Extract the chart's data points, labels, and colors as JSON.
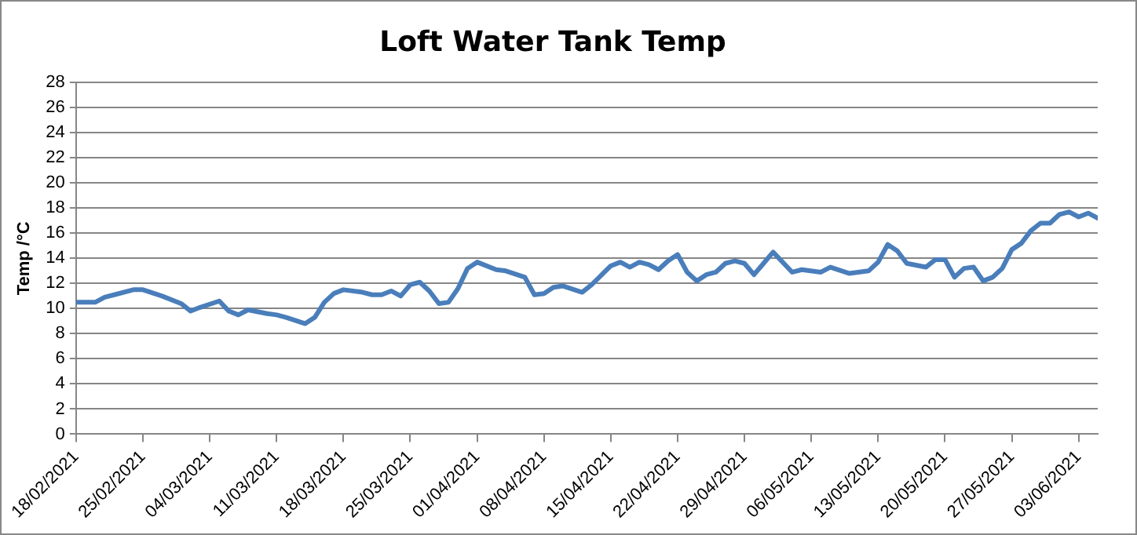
{
  "chart_data": {
    "type": "line",
    "title": "Loft Water Tank Temp",
    "ylabel": "Temp /°C",
    "x": [
      "2021-02-18",
      "2021-02-20",
      "2021-02-21",
      "2021-02-22",
      "2021-02-24",
      "2021-02-25",
      "2021-02-27",
      "2021-03-01",
      "2021-03-02",
      "2021-03-03",
      "2021-03-05",
      "2021-03-06",
      "2021-03-07",
      "2021-03-08",
      "2021-03-10",
      "2021-03-11",
      "2021-03-12",
      "2021-03-14",
      "2021-03-15",
      "2021-03-16",
      "2021-03-17",
      "2021-03-18",
      "2021-03-20",
      "2021-03-21",
      "2021-03-22",
      "2021-03-23",
      "2021-03-24",
      "2021-03-25",
      "2021-03-26",
      "2021-03-27",
      "2021-03-28",
      "2021-03-29",
      "2021-03-30",
      "2021-03-31",
      "2021-04-01",
      "2021-04-03",
      "2021-04-04",
      "2021-04-06",
      "2021-04-07",
      "2021-04-08",
      "2021-04-09",
      "2021-04-10",
      "2021-04-12",
      "2021-04-13",
      "2021-04-15",
      "2021-04-16",
      "2021-04-17",
      "2021-04-18",
      "2021-04-19",
      "2021-04-20",
      "2021-04-21",
      "2021-04-22",
      "2021-04-23",
      "2021-04-24",
      "2021-04-25",
      "2021-04-26",
      "2021-04-27",
      "2021-04-28",
      "2021-04-29",
      "2021-04-30",
      "2021-05-01",
      "2021-05-02",
      "2021-05-04",
      "2021-05-05",
      "2021-05-07",
      "2021-05-08",
      "2021-05-10",
      "2021-05-12",
      "2021-05-13",
      "2021-05-14",
      "2021-05-15",
      "2021-05-16",
      "2021-05-18",
      "2021-05-19",
      "2021-05-20",
      "2021-05-21",
      "2021-05-22",
      "2021-05-23",
      "2021-05-24",
      "2021-05-25",
      "2021-05-26",
      "2021-05-27",
      "2021-05-28",
      "2021-05-29",
      "2021-05-30",
      "2021-05-31",
      "2021-06-01",
      "2021-06-02",
      "2021-06-03",
      "2021-06-04",
      "2021-06-05"
    ],
    "series": [
      {
        "color": "#4a7ebb",
        "values": [
          10.5,
          10.5,
          10.9,
          11.1,
          11.5,
          11.5,
          11.0,
          10.4,
          9.8,
          10.1,
          10.6,
          9.8,
          9.5,
          9.9,
          9.6,
          9.5,
          9.3,
          8.8,
          9.3,
          10.5,
          11.2,
          11.5,
          11.3,
          11.1,
          11.1,
          11.4,
          11.0,
          11.9,
          12.1,
          11.4,
          10.4,
          10.5,
          11.6,
          13.2,
          13.7,
          13.1,
          13.0,
          12.5,
          11.1,
          11.2,
          11.7,
          11.8,
          11.3,
          11.9,
          13.4,
          13.7,
          13.3,
          13.7,
          13.5,
          13.1,
          13.8,
          14.3,
          12.9,
          12.2,
          12.7,
          12.9,
          13.6,
          13.8,
          13.6,
          12.7,
          13.6,
          14.5,
          12.9,
          13.1,
          12.9,
          13.3,
          12.8,
          13.0,
          13.7,
          15.1,
          14.6,
          13.6,
          13.3,
          13.9,
          13.9,
          12.5,
          13.2,
          13.3,
          12.2,
          12.5,
          13.2,
          14.7,
          15.2,
          16.2,
          16.8,
          16.8,
          17.5,
          17.7,
          17.3,
          17.6,
          17.2
        ]
      }
    ],
    "xlim": [
      "2021-02-18",
      "2021-06-05"
    ],
    "xticks": [
      {
        "value": "2021-02-18",
        "label": "18/02/2021"
      },
      {
        "value": "2021-02-25",
        "label": "25/02/2021"
      },
      {
        "value": "2021-03-04",
        "label": "04/03/2021"
      },
      {
        "value": "2021-03-11",
        "label": "11/03/2021"
      },
      {
        "value": "2021-03-18",
        "label": "18/03/2021"
      },
      {
        "value": "2021-03-25",
        "label": "25/03/2021"
      },
      {
        "value": "2021-04-01",
        "label": "01/04/2021"
      },
      {
        "value": "2021-04-08",
        "label": "08/04/2021"
      },
      {
        "value": "2021-04-15",
        "label": "15/04/2021"
      },
      {
        "value": "2021-04-22",
        "label": "22/04/2021"
      },
      {
        "value": "2021-04-29",
        "label": "29/04/2021"
      },
      {
        "value": "2021-05-06",
        "label": "06/05/2021"
      },
      {
        "value": "2021-05-13",
        "label": "13/05/2021"
      },
      {
        "value": "2021-05-20",
        "label": "20/05/2021"
      },
      {
        "value": "2021-05-27",
        "label": "27/05/2021"
      },
      {
        "value": "2021-06-03",
        "label": "03/06/2021"
      }
    ],
    "ylim": [
      0,
      28
    ],
    "yticks": [
      0,
      2,
      4,
      6,
      8,
      10,
      12,
      14,
      16,
      18,
      20,
      22,
      24,
      26,
      28
    ],
    "grid": "y",
    "legend": false,
    "marker": "none",
    "line_style": "solid"
  }
}
